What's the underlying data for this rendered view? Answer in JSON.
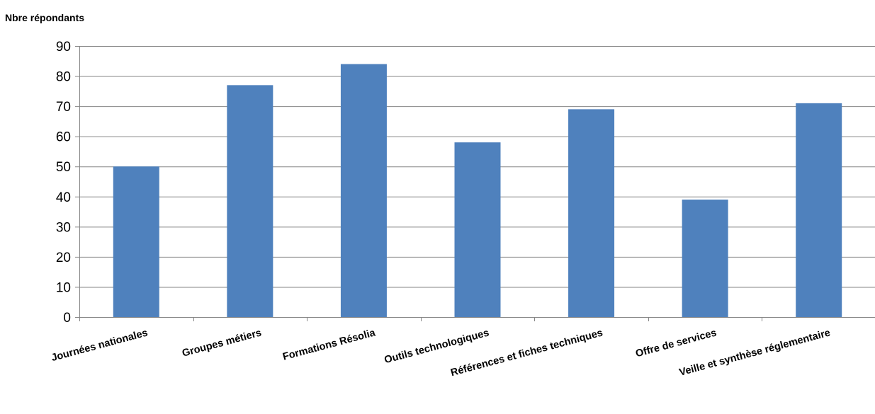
{
  "chart_data": {
    "type": "bar",
    "title": "",
    "xlabel": "",
    "ylabel": "Nbre répondants",
    "categories": [
      "Journées nationales",
      "Groupes métiers",
      "Formations Résolia",
      "Outils technologiques",
      "Références et fiches techniques",
      "Offre de services",
      "Veille et synthèse réglementaire"
    ],
    "values": [
      50,
      77,
      84,
      58,
      69,
      39,
      71
    ],
    "ylim": [
      0,
      90
    ],
    "yticks": [
      0,
      10,
      20,
      30,
      40,
      50,
      60,
      70,
      80,
      90
    ],
    "grid": true,
    "legend": "none",
    "colors": {
      "bar": "#4F81BD",
      "grid": "#868686",
      "axis": "#868686"
    }
  }
}
